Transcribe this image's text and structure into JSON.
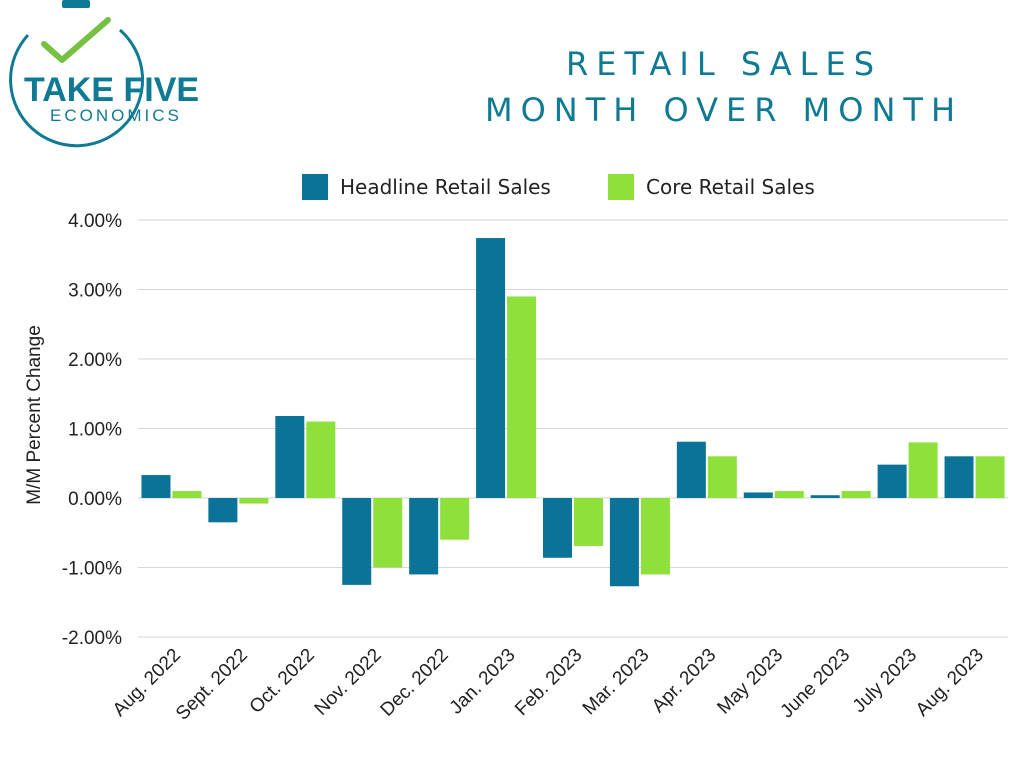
{
  "logo": {
    "line1": "TAKE FIVE",
    "line2": "ECONOMICS",
    "color": "#0f7a94",
    "check_color": "#76c043"
  },
  "title": {
    "line1": "RETAIL SALES",
    "line2": "MONTH OVER MONTH"
  },
  "chart_data": {
    "type": "bar",
    "title": "RETAIL SALES MONTH OVER MONTH",
    "xlabel": "",
    "ylabel": "M/M Percent Change",
    "ylim": [
      -2,
      4
    ],
    "grid": true,
    "legend_position": "top",
    "yticks": [
      4,
      3,
      2,
      1,
      0,
      -1,
      -2
    ],
    "ytick_labels": [
      "4.00%",
      "3.00%",
      "2.00%",
      "1.00%",
      "0.00%",
      "-1.00%",
      "-2.00%"
    ],
    "categories": [
      "Aug. 2022",
      "Sept. 2022",
      "Oct. 2022",
      "Nov. 2022",
      "Dec. 2022",
      "Jan. 2023",
      "Feb. 2023",
      "Mar. 2023",
      "Apr. 2023",
      "May 2023",
      "June 2023",
      "July 2023",
      "Aug. 2023"
    ],
    "series": [
      {
        "name": "Headline Retail Sales",
        "color": "#0b7397",
        "values": [
          0.33,
          -0.35,
          1.18,
          -1.25,
          -1.1,
          3.74,
          -0.86,
          -1.27,
          0.81,
          0.08,
          0.04,
          0.48,
          0.6
        ]
      },
      {
        "name": "Core Retail Sales",
        "color": "#8ee03b",
        "values": [
          0.1,
          -0.08,
          1.1,
          -1.0,
          -0.6,
          2.9,
          -0.69,
          -1.1,
          0.6,
          0.1,
          0.1,
          0.8,
          0.6
        ]
      }
    ]
  }
}
